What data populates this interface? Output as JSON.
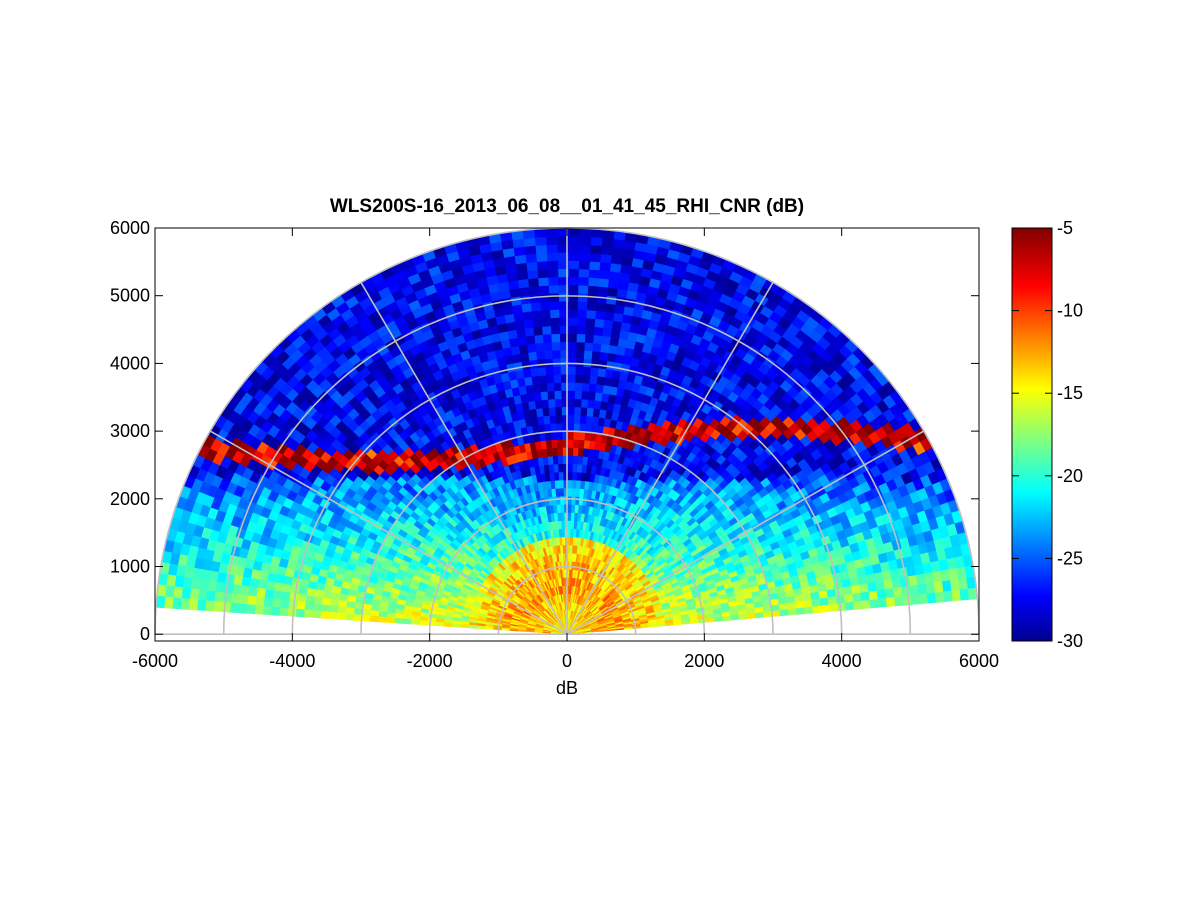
{
  "chart_data": {
    "type": "heatmap",
    "subtype": "polar-sector RHI scan",
    "title": "WLS200S-16_2013_06_08__01_41_45_RHI_CNR (dB)",
    "xlabel": "dB",
    "ylabel": "",
    "xlim": [
      -6000,
      6000
    ],
    "ylim": [
      -100,
      6000
    ],
    "x_ticks": [
      -6000,
      -4000,
      -2000,
      0,
      2000,
      4000,
      6000
    ],
    "x_tick_labels": [
      "-6000",
      "-4000",
      "-2000",
      "0",
      "2000",
      "4000",
      "6000"
    ],
    "y_ticks": [
      0,
      1000,
      2000,
      3000,
      4000,
      5000,
      6000
    ],
    "y_tick_labels": [
      "0",
      "1000",
      "2000",
      "3000",
      "4000",
      "5000",
      "6000"
    ],
    "polar_grid": {
      "ring_radii": [
        1000,
        2000,
        3000,
        4000,
        5000,
        6000
      ],
      "spoke_angles_deg": [
        0,
        30,
        60,
        90,
        120,
        150,
        180
      ]
    },
    "scan": {
      "max_range": 6000,
      "elevation_min_deg": 5,
      "elevation_max_deg": 175
    },
    "colorbar": {
      "colormap": "jet",
      "clim": [
        -30,
        -5
      ],
      "ticks": [
        -5,
        -10,
        -15,
        -20,
        -25,
        -30
      ],
      "tick_labels": [
        "-5",
        "-10",
        "-15",
        "-20",
        "-25",
        "-30"
      ]
    },
    "features": [
      {
        "kind": "boundary-layer-core",
        "range_m": [
          300,
          1200
        ],
        "value_db": -10
      },
      {
        "kind": "aerosol-layer-top",
        "altitude_m": [
          2400,
          3200
        ],
        "value_db": -5
      }
    ],
    "background_value_db": -27,
    "grid": true
  }
}
